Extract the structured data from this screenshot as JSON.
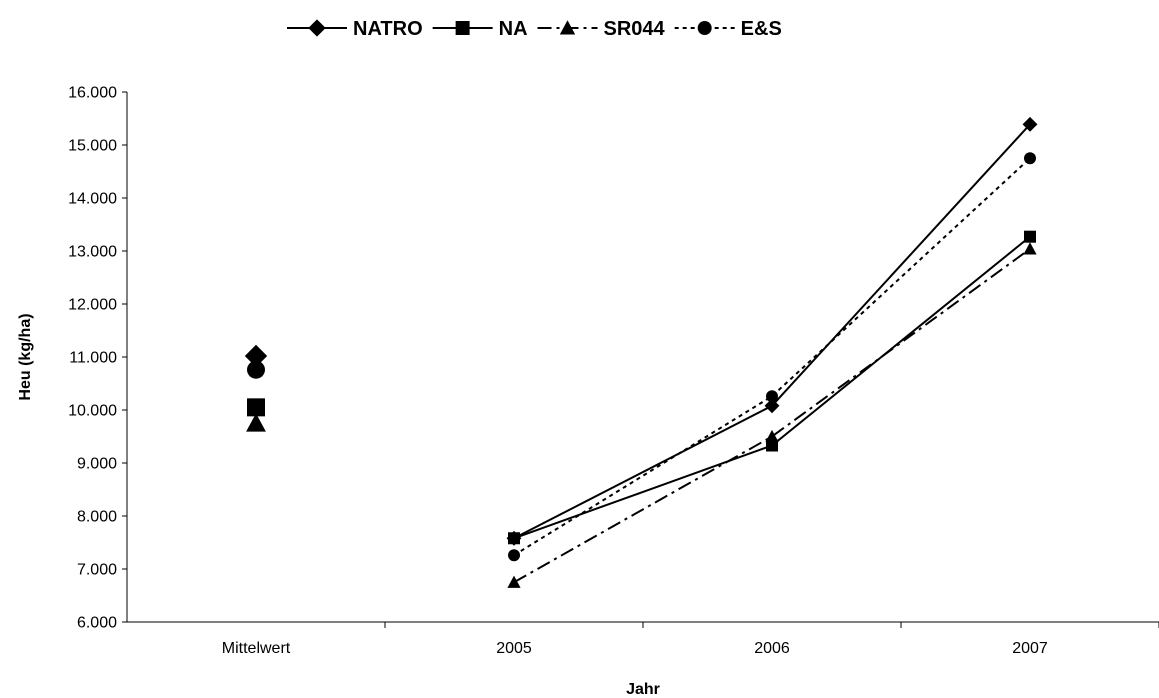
{
  "chart_data": {
    "type": "line",
    "title": "",
    "xlabel": "Jahr",
    "ylabel": "Heu (kg/ha)",
    "categories": [
      "Mittelwert",
      "2005",
      "2006",
      "2007"
    ],
    "ylim": [
      6000,
      16000
    ],
    "ytick_step": 1000,
    "ytick_labels": [
      "6.000",
      "7.000",
      "8.000",
      "9.000",
      "10.000",
      "11.000",
      "12.000",
      "13.000",
      "14.000",
      "15.000",
      "16.000"
    ],
    "grid": false,
    "legend_position": "top",
    "note": "Mittelwert points are plotted as standalone markers; lines connect only 2005-2007.",
    "series": [
      {
        "name": "NATRO",
        "marker": "diamond",
        "line_style": "solid",
        "values": [
          11020,
          7580,
          10080,
          15390
        ]
      },
      {
        "name": "NA",
        "marker": "square",
        "line_style": "solid",
        "values": [
          10050,
          7580,
          9330,
          13270
        ]
      },
      {
        "name": "SR044",
        "marker": "triangle",
        "line_style": "dashdot",
        "values": [
          9750,
          6750,
          9500,
          13040
        ]
      },
      {
        "name": "E&S",
        "marker": "circle",
        "line_style": "dotted",
        "values": [
          10760,
          7260,
          10260,
          14750
        ]
      }
    ]
  }
}
